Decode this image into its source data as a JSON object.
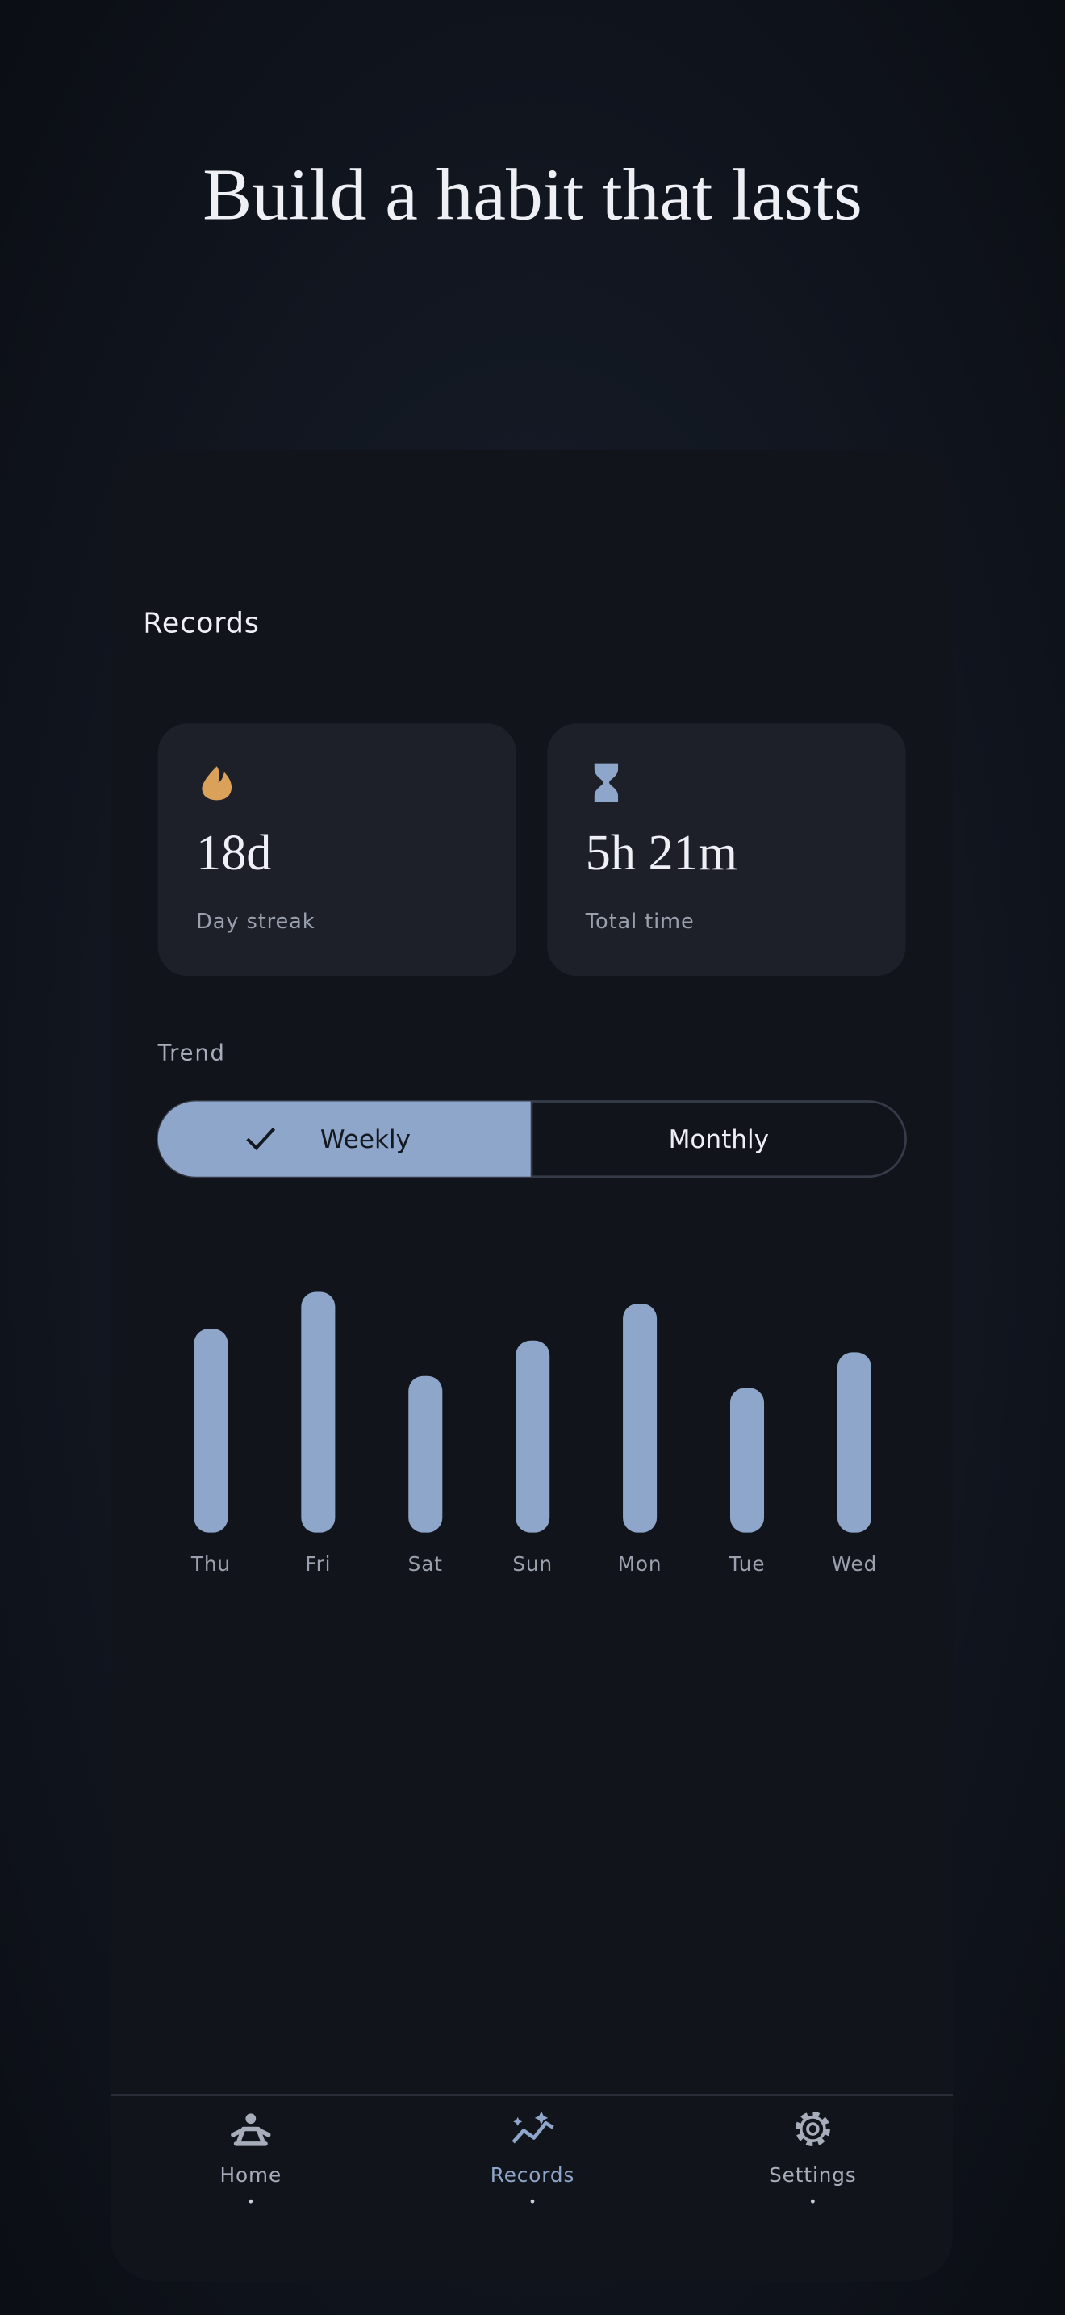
{
  "header": {
    "title": "Build a habit that lasts"
  },
  "screen": {
    "title": "Records"
  },
  "stats": [
    {
      "value": "18d",
      "label": "Day streak"
    },
    {
      "value": "5h 21m",
      "label": "Total time"
    }
  ],
  "trend": {
    "title": "Trend",
    "options": [
      "Weekly",
      "Monthly"
    ],
    "selected": "Weekly"
  },
  "chart_data": {
    "type": "bar",
    "categories": [
      "Thu",
      "Fri",
      "Sat",
      "Sun",
      "Mon",
      "Tue",
      "Wed"
    ],
    "values": [
      138,
      163,
      106,
      130,
      155,
      98,
      122
    ],
    "color": "#8fa6cb"
  },
  "nav": {
    "items": [
      "Home",
      "Records",
      "Settings"
    ],
    "active": "Records"
  }
}
